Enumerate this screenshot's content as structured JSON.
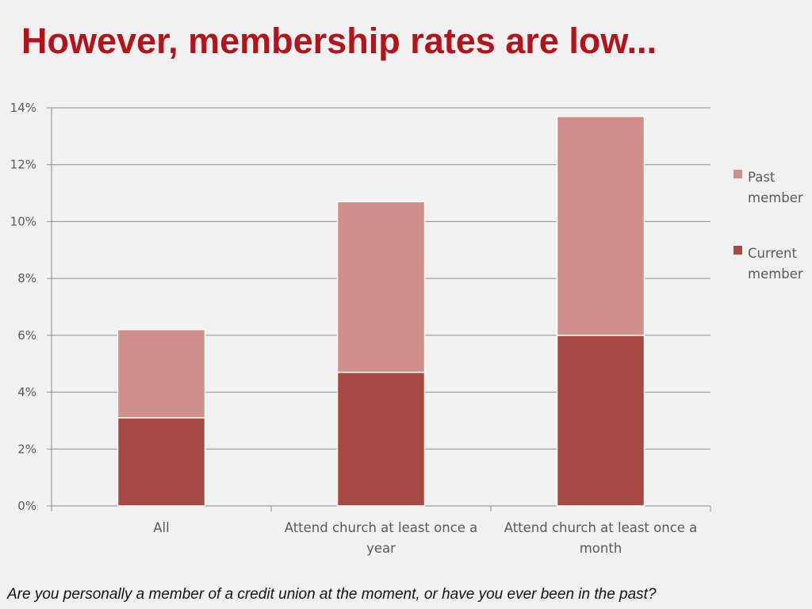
{
  "slide": {
    "title": "However, membership rates are low...",
    "footnote": "Are you personally a member of a credit union at the moment, or have you ever been in the past?"
  },
  "colors": {
    "title": "#b3141b",
    "current_member": "#a84845",
    "past_member": "#d18f8c",
    "gridline": "#8c8c8c",
    "axis_text": "#595959",
    "background": "#f1f1f1"
  },
  "chart_data": {
    "type": "bar",
    "stacked": true,
    "title": "",
    "xlabel": "",
    "ylabel": "",
    "categories": [
      [
        "All"
      ],
      [
        "Attend church at least once a",
        "year"
      ],
      [
        "Attend church at least once a",
        "month"
      ]
    ],
    "series": [
      {
        "name": [
          "Current",
          "member"
        ],
        "values": [
          3.1,
          4.7,
          6.0
        ],
        "color": "#a84845"
      },
      {
        "name": [
          "Past",
          "member"
        ],
        "values": [
          3.1,
          6.0,
          7.7
        ],
        "color": "#d18f8c"
      }
    ],
    "ylim": [
      0,
      14
    ],
    "yticks": [
      0,
      2,
      4,
      6,
      8,
      10,
      12,
      14
    ],
    "ytick_labels": [
      "0%",
      "2%",
      "4%",
      "6%",
      "8%",
      "10%",
      "12%",
      "14%"
    ],
    "grid": true,
    "legend": {
      "position": "right",
      "order": [
        "Past member",
        "Current member"
      ]
    }
  }
}
